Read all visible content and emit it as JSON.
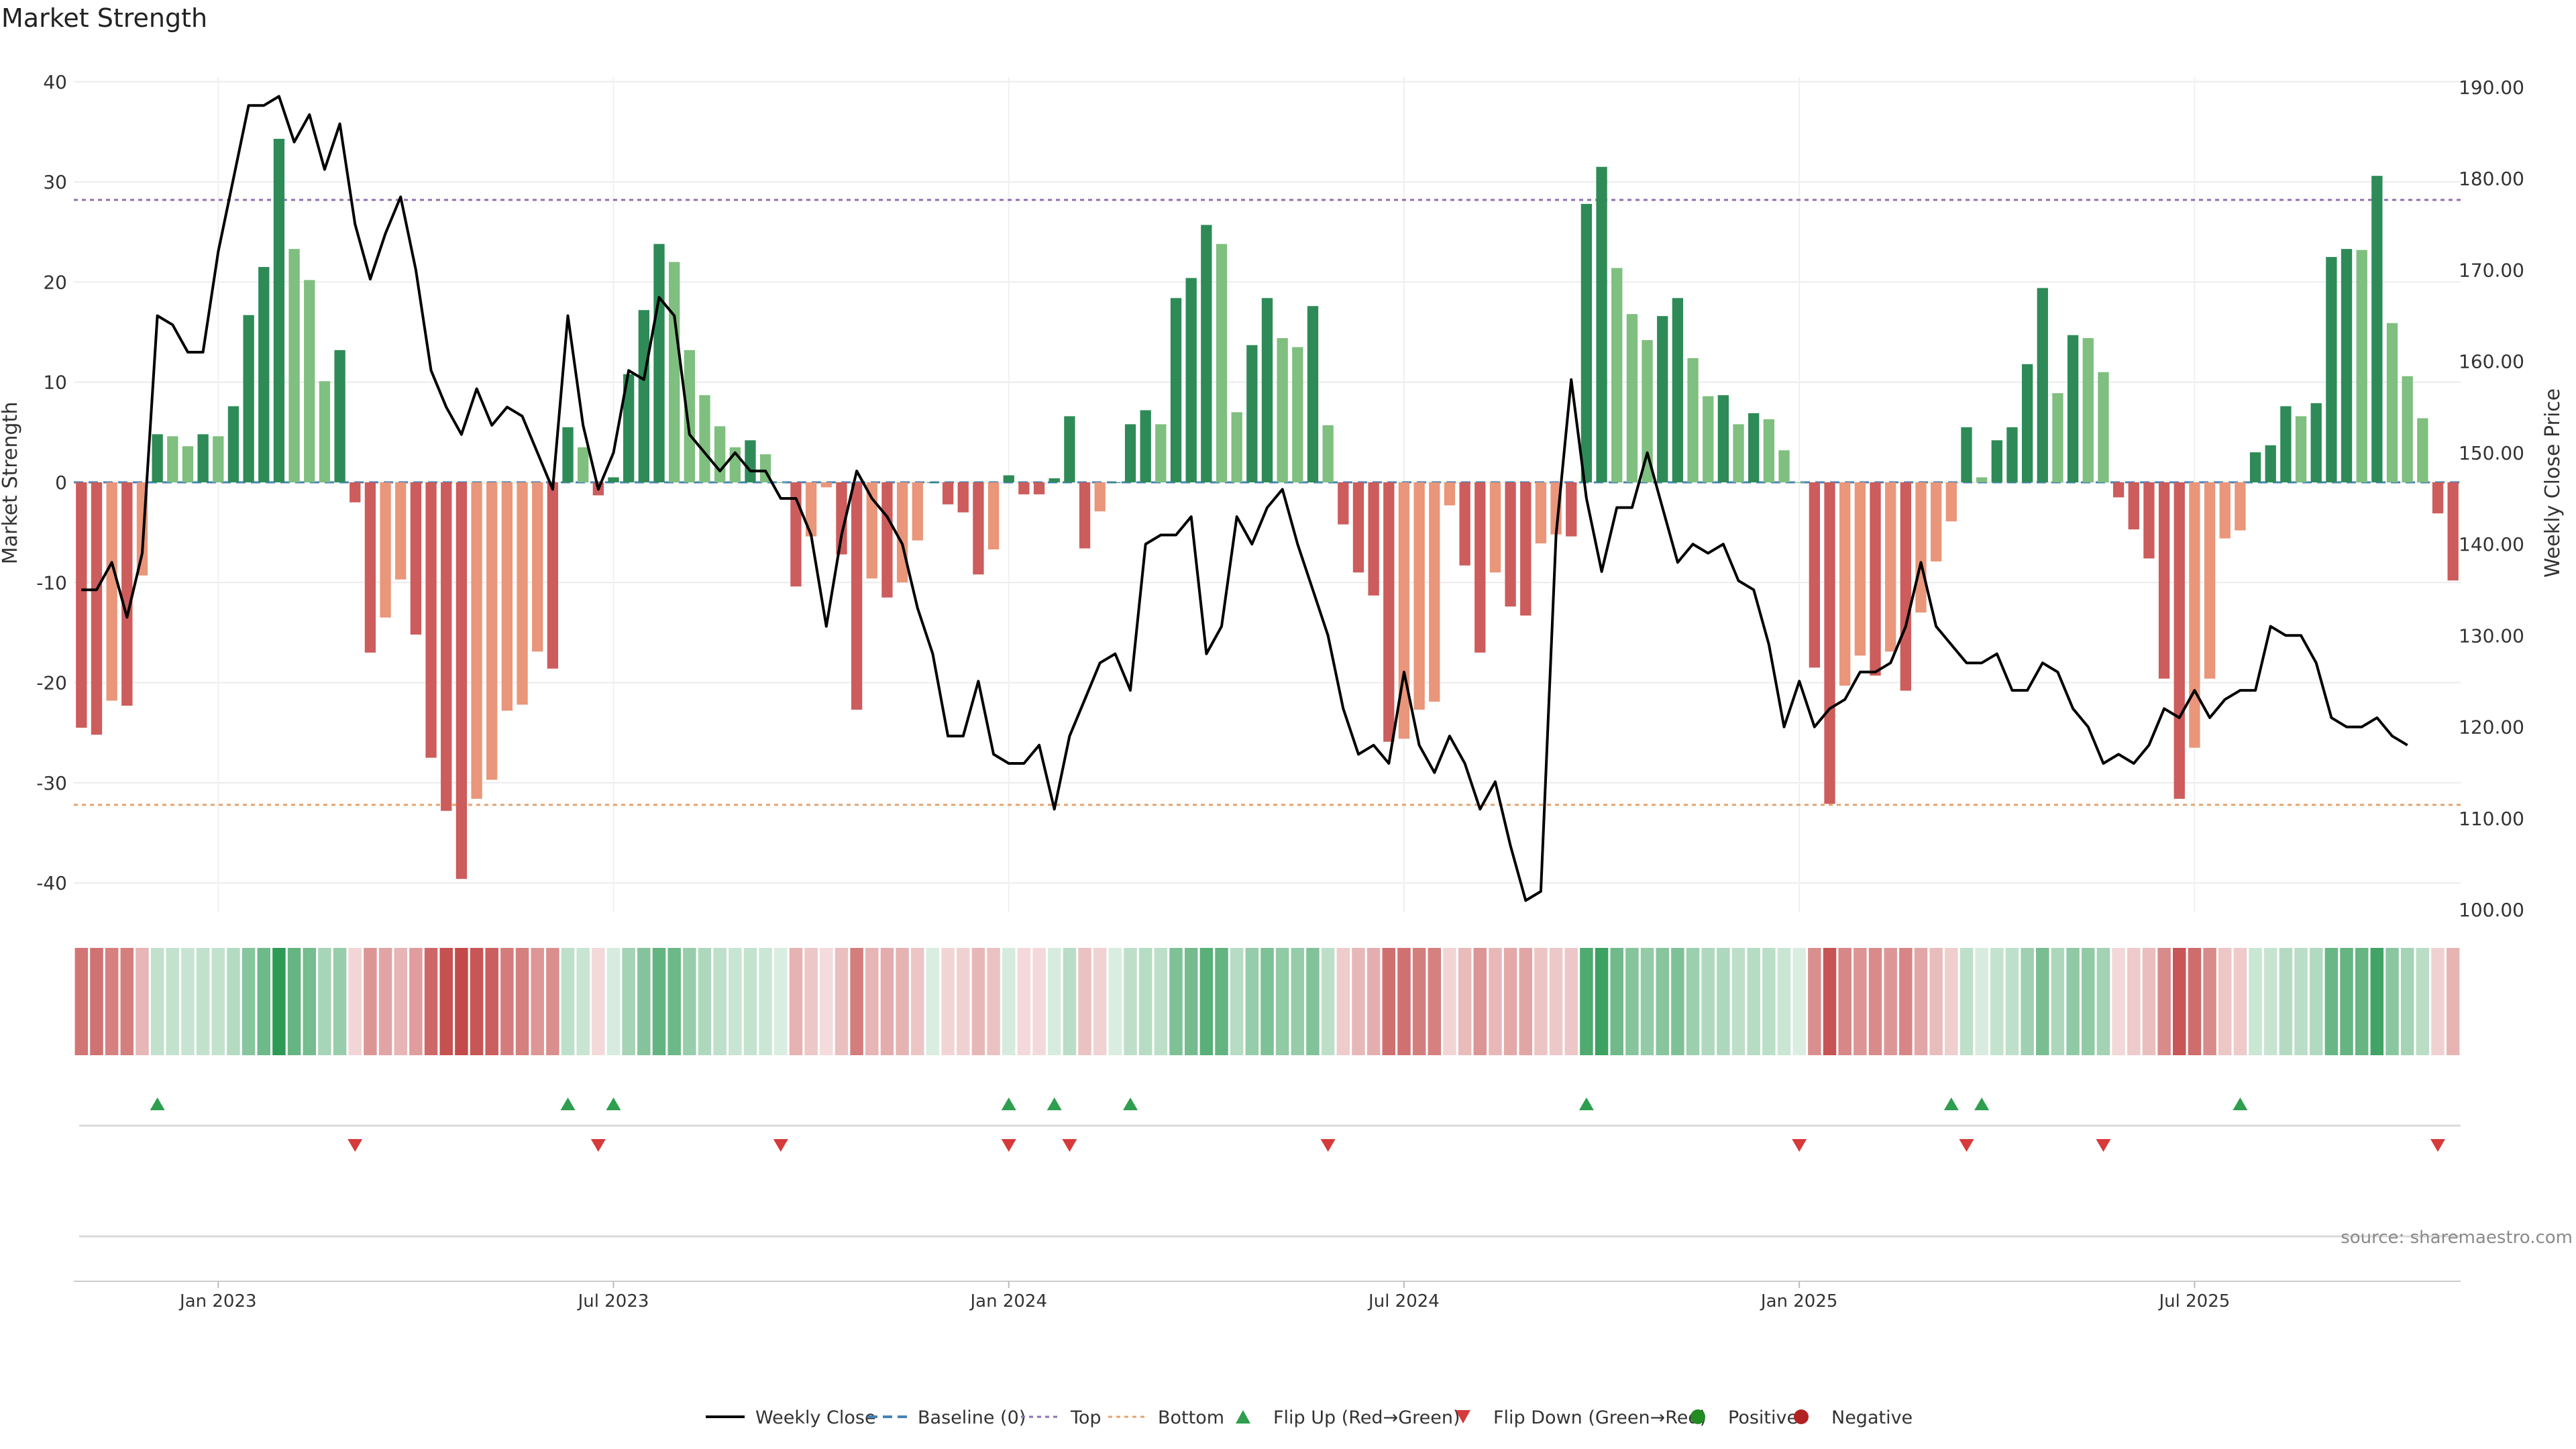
{
  "chart_data": {
    "type": "bar",
    "title": "Market Strength",
    "ylabel": "Market Strength",
    "y2label": "Weekly Close Price",
    "ylim": [
      -43,
      42
    ],
    "y2lim": [
      98,
      193
    ],
    "yticks": [
      -40,
      -30,
      -20,
      -10,
      0,
      10,
      20,
      30,
      40
    ],
    "y2ticks": [
      "100.00",
      "110.00",
      "120.00",
      "130.00",
      "140.00",
      "150.00",
      "160.00",
      "170.00",
      "180.00",
      "190.00"
    ],
    "xticks": [
      "Jan 2023",
      "Jul 2023",
      "Jan 2024",
      "Jul 2024",
      "Jan 2025",
      "Jul 2025"
    ],
    "xtick_weeks": [
      9,
      35,
      61,
      87,
      113,
      139
    ],
    "top_level": 28.2,
    "bottom_level": -32.2,
    "series": [
      {
        "name": "Market Strength",
        "values": [
          -24.5,
          -25.2,
          -21.8,
          -22.3,
          -9.3,
          4.8,
          4.6,
          3.6,
          4.8,
          4.6,
          7.6,
          16.7,
          21.5,
          34.3,
          23.3,
          20.2,
          10.1,
          13.2,
          -2.0,
          -17.0,
          -13.5,
          -9.7,
          -15.2,
          -27.5,
          -32.8,
          -39.6,
          -31.6,
          -29.7,
          -22.8,
          -22.2,
          -16.9,
          -18.6,
          5.5,
          3.5,
          -1.3,
          0.5,
          10.8,
          17.2,
          23.8,
          22.0,
          13.2,
          8.7,
          5.6,
          3.5,
          4.2,
          2.8,
          0,
          -10.4,
          -5.4,
          -0.5,
          -7.2,
          -22.7,
          -9.6,
          -11.5,
          -10.0,
          -5.8,
          0,
          -2.2,
          -3.0,
          -9.2,
          -6.7,
          0.7,
          -1.2,
          -1.2,
          0.4,
          6.6,
          -6.6,
          -2.9,
          0,
          5.8,
          7.2,
          5.8,
          18.4,
          20.4,
          25.7,
          23.8,
          7.0,
          13.7,
          18.4,
          14.4,
          13.5,
          17.6,
          5.7,
          -4.2,
          -9.0,
          -11.3,
          -25.9,
          -25.6,
          -22.7,
          -21.9,
          -2.3,
          -8.3,
          -17.0,
          -9.0,
          -12.4,
          -13.3,
          -6.1,
          -5.2,
          -5.4,
          27.8,
          31.5,
          21.4,
          16.8,
          14.2,
          16.6,
          18.4,
          12.4,
          8.6,
          8.7,
          5.8,
          6.9,
          6.3,
          3.2,
          0,
          -18.5,
          -32.1,
          -20.3,
          -17.3,
          -19.3,
          -16.9,
          -20.8,
          -13.0,
          -7.9,
          -3.9,
          5.5,
          0.5,
          4.2,
          5.5,
          11.8,
          19.4,
          8.9,
          14.7,
          14.4,
          11.0,
          -1.5,
          -4.7,
          -7.6,
          -19.6,
          -31.6,
          -26.5,
          -19.6,
          -5.6,
          -4.8,
          3.0,
          3.7,
          7.6,
          6.6,
          7.9,
          22.5,
          23.3,
          23.2,
          30.6,
          15.9,
          10.6,
          6.4,
          -3.1,
          -9.8
        ]
      },
      {
        "name": "Weekly Close",
        "values": [
          135,
          135,
          138,
          132,
          139,
          165,
          164,
          161,
          161,
          172,
          180,
          188,
          188,
          189,
          184,
          187,
          181,
          186,
          175,
          169,
          174,
          178,
          170,
          159,
          155,
          152,
          157,
          153,
          155,
          154,
          150,
          146,
          165,
          153,
          146,
          150,
          159,
          158,
          167,
          165,
          152,
          150,
          148,
          150,
          148,
          148,
          145,
          145,
          141,
          131,
          141,
          148,
          145,
          143,
          140,
          133,
          128,
          119,
          119,
          125,
          117,
          116,
          116,
          118,
          111,
          119,
          123,
          127,
          128,
          124,
          140,
          141,
          141,
          143,
          128,
          131,
          143,
          140,
          144,
          146,
          140,
          135,
          130,
          122,
          117,
          118,
          116,
          126,
          118,
          115,
          119,
          116,
          111,
          114,
          107,
          101,
          102,
          141,
          158,
          145,
          137,
          144,
          144,
          150,
          144,
          138,
          140,
          139,
          140,
          136,
          135,
          129,
          120,
          125,
          120,
          122,
          123,
          126,
          126,
          127,
          131,
          138,
          131,
          129,
          127,
          127,
          128,
          124,
          124,
          127,
          126,
          122,
          120,
          116,
          117,
          116,
          118,
          122,
          121,
          124,
          121,
          123,
          124,
          124,
          131,
          130,
          130,
          127,
          121,
          120,
          120,
          121,
          119,
          118
        ]
      }
    ],
    "legend": [
      "Weekly Close",
      "Baseline (0)",
      "Top",
      "Bottom",
      "Flip Up (Red→Green)",
      "Flip Down (Green→Red)",
      "Positive",
      "Negative"
    ],
    "legend_position": "bottom-center",
    "flip_up_weeks": [
      5,
      32,
      35,
      61,
      64,
      69,
      99,
      123,
      125,
      142
    ],
    "flip_down_weeks": [
      18,
      34,
      46,
      61,
      65,
      82,
      113,
      124,
      133,
      155
    ],
    "source": "source: sharemaestro.com",
    "colors": {
      "strong_green": "#2e8b57",
      "light_green": "#7fbf7f",
      "strong_red": "#cd5c5c",
      "light_red": "#e9967a",
      "close_line": "#000000",
      "baseline": "#4682b4",
      "top": "#8e6fae",
      "bottom": "#e5a36e",
      "flip_up": "#2e9e4f",
      "flip_down": "#d63a3a",
      "positive_dot": "#228b22",
      "negative_dot": "#b22222"
    }
  }
}
